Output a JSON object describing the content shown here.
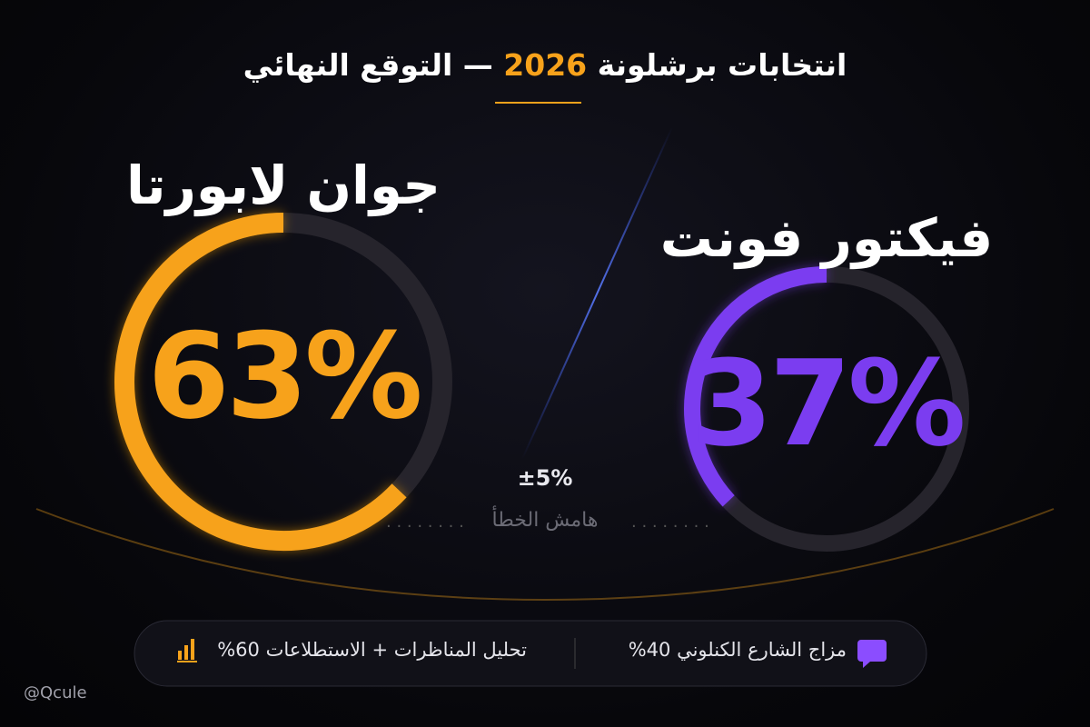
{
  "chart_data": {
    "type": "gauge",
    "title": [
      "انتخابات برشلونة",
      "2026",
      "— التوقع النهائي"
    ],
    "categories": [
      "جوان لابورتا",
      "فيكتور فونت"
    ],
    "values": [
      63,
      37
    ],
    "value_labels": [
      "63%",
      "37%"
    ],
    "colors": [
      "#f7a21b",
      "#7b3df0"
    ],
    "ylim": [
      0,
      100
    ],
    "annotations": [
      "±5%",
      "هامش الخطأ"
    ],
    "footer": [
      "مزاج الشارع الكنلوني 40%",
      "تحليل المناظرات + الاستطلاعات 60%"
    ],
    "handle": "@Qcule"
  }
}
